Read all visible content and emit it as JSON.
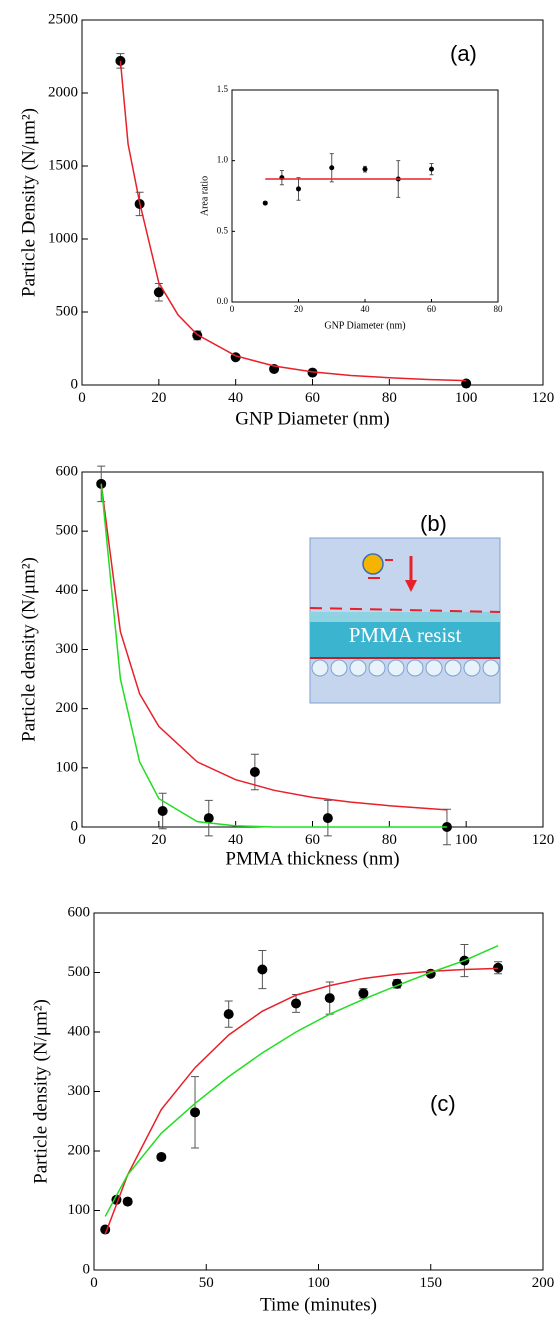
{
  "chart_data": [
    {
      "type": "scatter",
      "panel_label": "(a)",
      "xlabel": "GNP Diameter (nm)",
      "ylabel": "Particle Density (N/μm²)",
      "xlim": [
        0,
        120
      ],
      "xticks": [
        0,
        20,
        40,
        60,
        80,
        100,
        120
      ],
      "ylim": [
        0,
        2500
      ],
      "yticks": [
        0,
        500,
        1000,
        1500,
        2000,
        2500
      ],
      "series": [
        {
          "mode": "markers",
          "color": "#000000",
          "x": [
            10,
            15,
            20,
            30,
            40,
            50,
            60,
            100
          ],
          "values": [
            2220,
            1240,
            635,
            340,
            190,
            110,
            85,
            10
          ],
          "errors": [
            50,
            80,
            60,
            30,
            10,
            10,
            10,
            5
          ]
        },
        {
          "mode": "line",
          "color": "#e8202a",
          "x": [
            10,
            12,
            15,
            20,
            25,
            30,
            40,
            50,
            60,
            70,
            80,
            90,
            100
          ],
          "values": [
            2220,
            1650,
            1250,
            700,
            480,
            345,
            200,
            130,
            90,
            65,
            50,
            38,
            30
          ]
        }
      ]
    },
    {
      "type": "scatter",
      "xlabel": "GNP Diameter (nm)",
      "ylabel": "Area ratio",
      "xlim": [
        0,
        80
      ],
      "xticks": [
        0,
        20,
        40,
        60,
        80
      ],
      "ylim": [
        0,
        1.5
      ],
      "yticks": [
        {
          "value": 0,
          "label": "0.0"
        },
        0.5,
        {
          "value": 1,
          "label": "1.0"
        },
        1.5
      ],
      "series": [
        {
          "mode": "markers",
          "color": "#000000",
          "x": [
            10,
            15,
            20,
            30,
            40,
            50,
            60
          ],
          "values": [
            0.7,
            0.88,
            0.8,
            0.95,
            0.94,
            0.87,
            0.94
          ],
          "errors": [
            0.01,
            0.05,
            0.08,
            0.1,
            0.02,
            0.13,
            0.04
          ]
        },
        {
          "mode": "line",
          "color": "#e8202a",
          "x": [
            10,
            60
          ],
          "values": [
            0.87,
            0.87
          ]
        }
      ]
    },
    {
      "type": "scatter",
      "panel_label": "(b)",
      "diagram_text": "PMMA resist",
      "xlabel": "PMMA thickness (nm)",
      "ylabel": "Particle density (N/μm²)",
      "xlim": [
        0,
        120
      ],
      "xticks": [
        0,
        20,
        40,
        60,
        80,
        100,
        120
      ],
      "ylim": [
        0,
        600
      ],
      "yticks": [
        0,
        100,
        200,
        300,
        400,
        500,
        600
      ],
      "series": [
        {
          "mode": "markers",
          "color": "#000000",
          "x": [
            5,
            21,
            33,
            45,
            64,
            95
          ],
          "values": [
            580,
            27,
            15,
            93,
            15,
            0
          ],
          "errors": [
            30,
            30,
            30,
            30,
            30,
            30
          ]
        },
        {
          "mode": "line",
          "color": "#e8202a",
          "x": [
            5,
            10,
            15,
            20,
            30,
            40,
            50,
            60,
            70,
            80,
            95
          ],
          "values": [
            580,
            330,
            225,
            170,
            110,
            80,
            62,
            50,
            42,
            36,
            29
          ]
        },
        {
          "mode": "line",
          "color": "#22dd22",
          "x": [
            5,
            10,
            15,
            20,
            30,
            40,
            50,
            60,
            70,
            80,
            95
          ],
          "values": [
            580,
            250,
            110,
            48,
            9,
            2,
            0,
            0,
            0,
            0,
            0
          ]
        }
      ]
    },
    {
      "type": "scatter",
      "panel_label": "(c)",
      "xlabel": "Time (minutes)",
      "ylabel": "Particle density (N/μm²)",
      "xlim": [
        0,
        200
      ],
      "xticks": [
        0,
        50,
        100,
        150,
        200
      ],
      "ylim": [
        0,
        600
      ],
      "yticks": [
        0,
        100,
        200,
        300,
        400,
        500,
        600
      ],
      "series": [
        {
          "mode": "markers",
          "color": "#000000",
          "x": [
            5,
            10,
            15,
            30,
            45,
            60,
            75,
            90,
            105,
            120,
            135,
            150,
            165,
            180
          ],
          "values": [
            68,
            118,
            115,
            190,
            265,
            430,
            505,
            448,
            457,
            465,
            481,
            498,
            520,
            508
          ],
          "errors": [
            0,
            5,
            5,
            5,
            60,
            22,
            32,
            15,
            27,
            8,
            7,
            4,
            27,
            10
          ]
        },
        {
          "mode": "line",
          "color": "#e8202a",
          "x": [
            5,
            15,
            30,
            45,
            60,
            75,
            90,
            105,
            120,
            135,
            150,
            165,
            180
          ],
          "values": [
            60,
            160,
            270,
            340,
            395,
            435,
            462,
            478,
            490,
            497,
            502,
            505,
            507
          ]
        },
        {
          "mode": "line",
          "color": "#22dd22",
          "x": [
            5,
            15,
            30,
            45,
            60,
            75,
            90,
            105,
            120,
            135,
            150,
            165,
            180
          ],
          "values": [
            90,
            160,
            230,
            280,
            325,
            365,
            400,
            430,
            455,
            478,
            500,
            520,
            545
          ]
        }
      ]
    }
  ]
}
